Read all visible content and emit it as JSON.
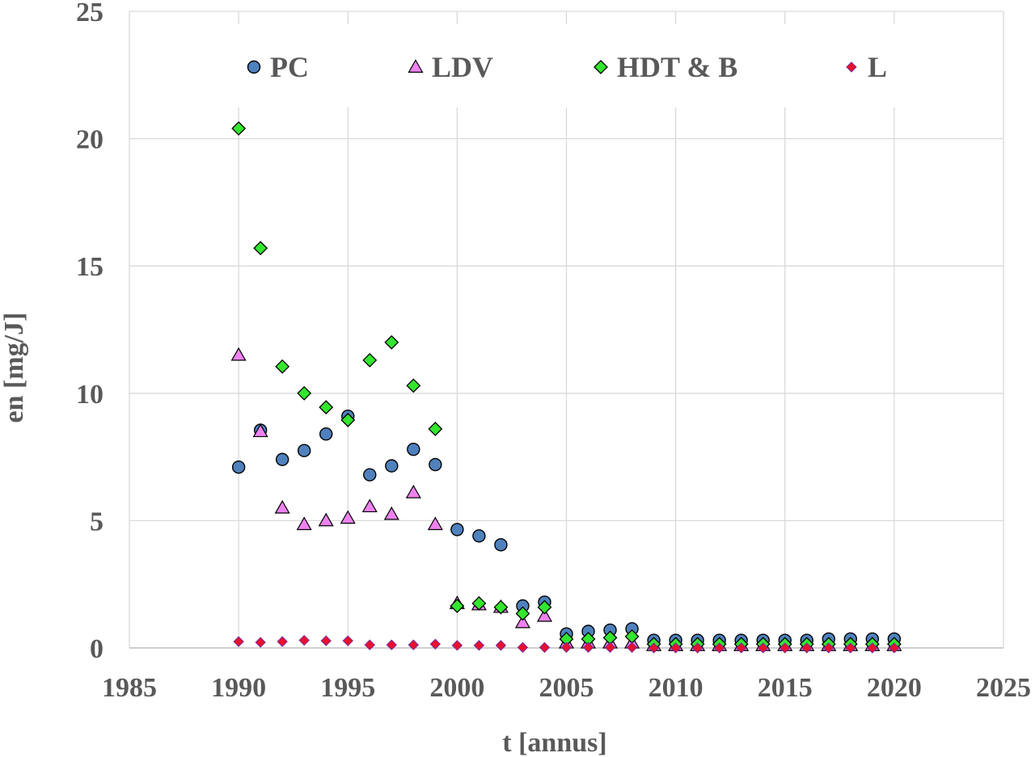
{
  "chart_data": {
    "type": "scatter",
    "title": "",
    "xlabel": "t [annus]",
    "ylabel": "en [mg/J]",
    "xlim": [
      1985,
      2025
    ],
    "ylim": [
      0,
      25
    ],
    "xticks": [
      1985,
      1990,
      1995,
      2000,
      2005,
      2010,
      2015,
      2020,
      2025
    ],
    "yticks": [
      0,
      5,
      10,
      15,
      20,
      25
    ],
    "grid": true,
    "legend_position": "top",
    "series": [
      {
        "name": "PC",
        "marker": "circle",
        "color": "#4f81bd",
        "x": [
          1990,
          1991,
          1992,
          1993,
          1994,
          1995,
          1996,
          1997,
          1998,
          1999,
          2000,
          2001,
          2002,
          2003,
          2004,
          2005,
          2006,
          2007,
          2008,
          2009,
          2010,
          2011,
          2012,
          2013,
          2014,
          2015,
          2016,
          2017,
          2018,
          2019,
          2020
        ],
        "values": [
          7.1,
          8.55,
          7.4,
          7.75,
          8.4,
          9.1,
          6.8,
          7.15,
          7.8,
          7.2,
          4.65,
          4.4,
          4.05,
          1.65,
          1.8,
          0.55,
          0.65,
          0.7,
          0.75,
          0.3,
          0.3,
          0.3,
          0.3,
          0.3,
          0.3,
          0.3,
          0.3,
          0.35,
          0.35,
          0.35,
          0.35
        ]
      },
      {
        "name": "LDV",
        "marker": "triangle",
        "color": "#ee82ee",
        "x": [
          1990,
          1991,
          1992,
          1993,
          1994,
          1995,
          1996,
          1997,
          1998,
          1999,
          2000,
          2001,
          2002,
          2003,
          2004,
          2005,
          2006,
          2007,
          2008,
          2009,
          2010,
          2011,
          2012,
          2013,
          2014,
          2015,
          2016,
          2017,
          2018,
          2019,
          2020
        ],
        "values": [
          11.5,
          8.5,
          5.5,
          4.85,
          5.0,
          5.1,
          5.55,
          5.25,
          6.1,
          4.85,
          1.75,
          1.7,
          1.6,
          1.0,
          1.25,
          0.2,
          0.2,
          0.2,
          0.2,
          0.1,
          0.1,
          0.1,
          0.1,
          0.1,
          0.1,
          0.1,
          0.1,
          0.1,
          0.1,
          0.1,
          0.1
        ]
      },
      {
        "name": "HDT & B",
        "marker": "diamond",
        "color": "#33e62e",
        "x": [
          1990,
          1991,
          1992,
          1993,
          1994,
          1995,
          1996,
          1997,
          1998,
          1999,
          2000,
          2001,
          2002,
          2003,
          2004,
          2005,
          2006,
          2007,
          2008,
          2009,
          2010,
          2011,
          2012,
          2013,
          2014,
          2015,
          2016,
          2017,
          2018,
          2019,
          2020
        ],
        "values": [
          20.4,
          15.7,
          11.05,
          10.0,
          9.45,
          8.95,
          11.3,
          12.0,
          10.3,
          8.6,
          1.65,
          1.75,
          1.6,
          1.35,
          1.6,
          0.35,
          0.35,
          0.4,
          0.45,
          0.15,
          0.15,
          0.15,
          0.15,
          0.15,
          0.15,
          0.15,
          0.15,
          0.15,
          0.15,
          0.15,
          0.15
        ]
      },
      {
        "name": "L",
        "marker": "diamond-small",
        "color": "#e8112d",
        "x": [
          1990,
          1991,
          1992,
          1993,
          1994,
          1995,
          1996,
          1997,
          1998,
          1999,
          2000,
          2001,
          2002,
          2003,
          2004,
          2005,
          2006,
          2007,
          2008,
          2009,
          2010,
          2011,
          2012,
          2013,
          2014,
          2015,
          2016,
          2017,
          2018,
          2019,
          2020
        ],
        "values": [
          0.25,
          0.22,
          0.25,
          0.3,
          0.28,
          0.28,
          0.12,
          0.12,
          0.12,
          0.15,
          0.1,
          0.1,
          0.1,
          0.02,
          0.02,
          0.02,
          0.02,
          0.02,
          0.02,
          0.0,
          0.0,
          0.0,
          0.0,
          0.0,
          0.0,
          0.0,
          0.0,
          0.0,
          0.0,
          0.0,
          0.0
        ]
      }
    ]
  }
}
